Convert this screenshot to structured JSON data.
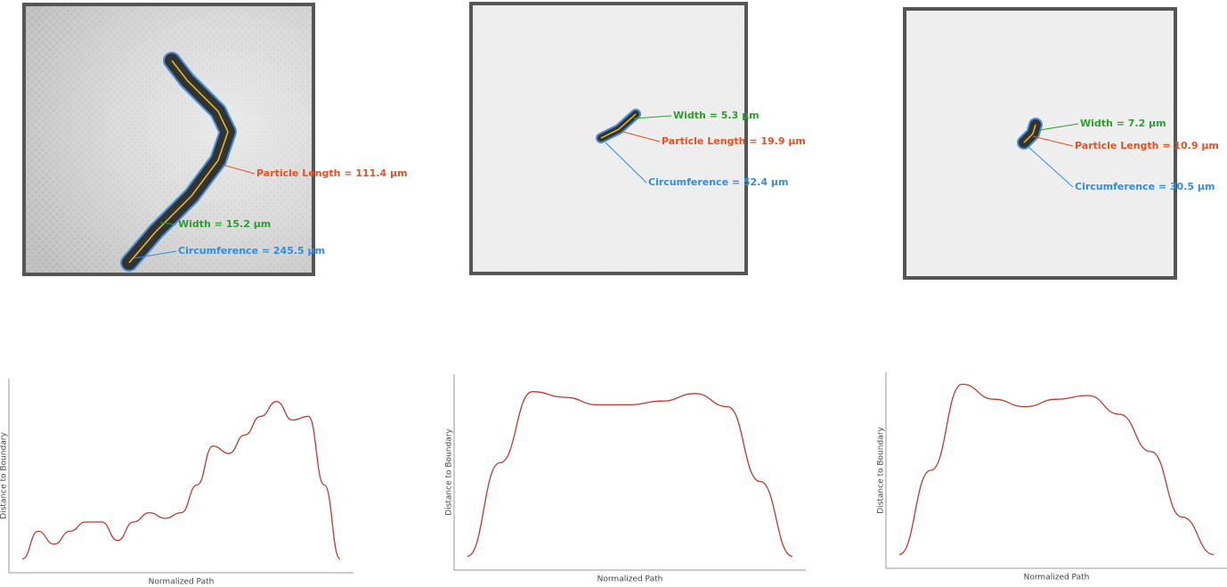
{
  "panels": [
    {
      "annotations": {
        "width": "Width = 15.2 µm",
        "length": "Particle Length = 111.4 µm",
        "circumference": "Circumference = 245.5 µm"
      },
      "profile": {
        "type": "line",
        "x_label": "Normalized Path",
        "y_label": "Distance to Boundary",
        "color": "#c0392b",
        "xlim": [
          0,
          1
        ],
        "ylim": [
          0,
          1
        ],
        "x": [
          0,
          0.05,
          0.1,
          0.15,
          0.2,
          0.25,
          0.3,
          0.35,
          0.4,
          0.45,
          0.5,
          0.55,
          0.6,
          0.65,
          0.7,
          0.75,
          0.8,
          0.85,
          0.9,
          0.95,
          1
        ],
        "values": [
          0.05,
          0.2,
          0.13,
          0.2,
          0.25,
          0.25,
          0.15,
          0.25,
          0.3,
          0.27,
          0.3,
          0.45,
          0.66,
          0.62,
          0.72,
          0.82,
          0.9,
          0.8,
          0.82,
          0.45,
          0.05
        ]
      }
    },
    {
      "annotations": {
        "width": "Width = 5.3 µm",
        "length": "Particle Length = 19.9 µm",
        "circumference": "Circumference = 52.4 µm"
      },
      "profile": {
        "type": "line",
        "x_label": "Normalized Path",
        "y_label": "Distance to Boundary",
        "color": "#c0392b",
        "xlim": [
          0,
          1
        ],
        "ylim": [
          0,
          1
        ],
        "x": [
          0,
          0.1,
          0.2,
          0.3,
          0.4,
          0.5,
          0.6,
          0.7,
          0.8,
          0.9,
          1
        ],
        "values": [
          0.05,
          0.55,
          0.93,
          0.9,
          0.86,
          0.86,
          0.88,
          0.92,
          0.85,
          0.45,
          0.05
        ]
      }
    },
    {
      "annotations": {
        "width": "Width = 7.2 µm",
        "length": "Particle Length = 10.9 µm",
        "circumference": "Circumference = 30.5 µm"
      },
      "profile": {
        "type": "line",
        "x_label": "Normalized Path",
        "y_label": "Distance to Boundary",
        "color": "#c0392b",
        "xlim": [
          0,
          1
        ],
        "ylim": [
          0,
          1
        ],
        "x": [
          0,
          0.1,
          0.2,
          0.3,
          0.4,
          0.5,
          0.6,
          0.7,
          0.8,
          0.9,
          1
        ],
        "values": [
          0.05,
          0.5,
          0.96,
          0.88,
          0.84,
          0.88,
          0.9,
          0.8,
          0.6,
          0.25,
          0.05
        ]
      }
    }
  ]
}
